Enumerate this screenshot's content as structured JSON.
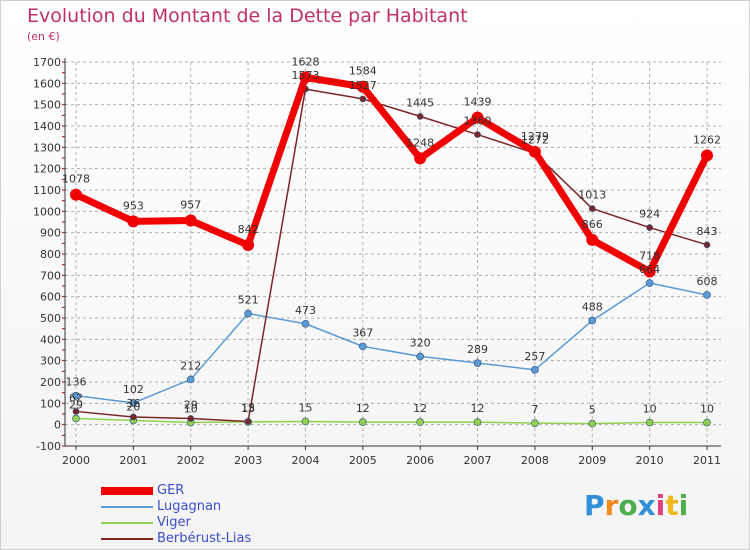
{
  "title": "Evolution du Montant de la Dette par Habitant",
  "subtitle": "(en €)",
  "logo": {
    "text": "Proxiti",
    "letters": [
      {
        "char": "P",
        "color": "#2f8fd8"
      },
      {
        "char": "r",
        "color": "#f08a1c"
      },
      {
        "char": "o",
        "color": "#4cae4c"
      },
      {
        "char": "x",
        "color": "#2f8fd8"
      },
      {
        "char": "i",
        "color": "#e0407a"
      },
      {
        "char": "t",
        "color": "#f0b81c"
      },
      {
        "char": "i",
        "color": "#4cae4c"
      }
    ]
  },
  "colors": {
    "GER": "#f00000",
    "Lugagnan": "#5b9bd5",
    "Viger": "#92d050",
    "Berbérust-Lias": "#7b2626",
    "grid": "#b0b0b0",
    "axis": "#333333",
    "tick_mark": "#cc0000"
  },
  "chart_data": {
    "type": "line",
    "title": "Evolution du Montant de la Dette par Habitant",
    "subtitle": "(en €)",
    "xlabel": "",
    "ylabel": "",
    "x": [
      "2000",
      "2001",
      "2002",
      "2003",
      "2004",
      "2005",
      "2006",
      "2007",
      "2008",
      "2009",
      "2010",
      "2011"
    ],
    "ylim": [
      -100,
      1700
    ],
    "yticks": [
      -100,
      0,
      100,
      200,
      300,
      400,
      500,
      600,
      700,
      800,
      900,
      1000,
      1100,
      1200,
      1300,
      1400,
      1500,
      1600,
      1700
    ],
    "grid": "horizontal dashed",
    "legend_position": "bottom-left",
    "series": [
      {
        "name": "GER",
        "values": [
          1078,
          953,
          957,
          842,
          1628,
          1584,
          1248,
          1439,
          1279,
          866,
          718,
          1262
        ],
        "labels": [
          "1078",
          "953",
          "957",
          "842",
          "1628",
          "1584",
          "1248",
          "1439",
          "1279",
          "866",
          "718",
          "1262"
        ]
      },
      {
        "name": "Lugagnan",
        "values": [
          136,
          102,
          212,
          521,
          473,
          367,
          320,
          289,
          257,
          488,
          664,
          608
        ],
        "labels": [
          "136",
          "102",
          "212",
          "521",
          "473",
          "367",
          "320",
          "289",
          "257",
          "488",
          "664",
          "608"
        ]
      },
      {
        "name": "Viger",
        "values": [
          29,
          20,
          10,
          13,
          15,
          12,
          12,
          12,
          7,
          5,
          10,
          10
        ],
        "labels": [
          "29",
          "20",
          "10",
          "13",
          "15",
          "12",
          "12",
          "12",
          "7",
          "5",
          "10",
          "10"
        ]
      },
      {
        "name": "Berbérust-Lias",
        "values": [
          62,
          36,
          29,
          15,
          1573,
          1527,
          1445,
          1360,
          1272,
          1013,
          924,
          843
        ],
        "labels": [
          "62",
          "36",
          "29",
          "15",
          "1573",
          "1527",
          "1445",
          "1360",
          "1272",
          "1013",
          "924",
          "843"
        ]
      }
    ]
  }
}
